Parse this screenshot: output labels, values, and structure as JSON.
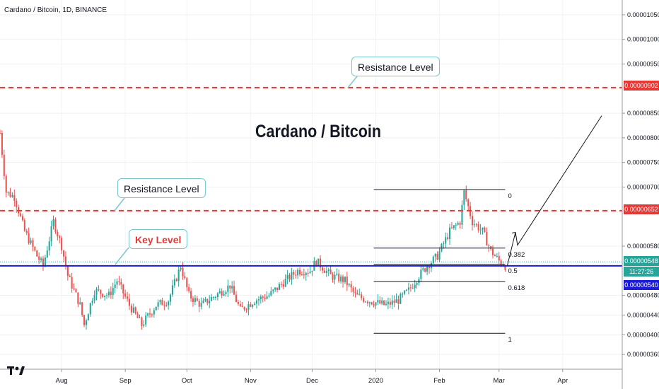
{
  "symbol_line": "Cardano / Bitcoin, 1D, BINANCE",
  "heading": "Cardano / Bitcoin",
  "annotations": {
    "resistance_top": "Resistance Level",
    "resistance_mid": "Resistance Level",
    "key_level": "Key Level"
  },
  "price_tags": {
    "resistance_top": "0.00000902",
    "resistance_mid": "0.00000652",
    "current": "0.00000548",
    "countdown": "11:27:26",
    "key_level": "0.00000540"
  },
  "colors": {
    "resistance": "#e53935",
    "key_level": "#1c1cd6",
    "current": "#26a69a",
    "up_candle": "#26a69a",
    "down_candle": "#ef5350",
    "fib": "#131722",
    "annotation_border": "#7cc6cf"
  },
  "icons": [
    "tradingview-logo-icon"
  ],
  "chart_data": {
    "type": "candlestick",
    "title": "Cardano / Bitcoin",
    "subtitle": "Cardano / Bitcoin, 1D, BINANCE",
    "y_axis_ticks": [
      "0.00001050",
      "0.00001000",
      "0.00000950",
      "0.00000850",
      "0.00000800",
      "0.00000750",
      "0.00000700",
      "0.00000580",
      "0.00000480",
      "0.00000440",
      "0.00000400",
      "0.00000360"
    ],
    "ylim": [
      3.3e-06,
      1.08e-05
    ],
    "x_axis_ticks": [
      "Aug",
      "Sep",
      "Oct",
      "Nov",
      "Dec",
      "2020",
      "Feb",
      "Mar",
      "Apr"
    ],
    "xlim": [
      "2019-07-02",
      "2020-04-30"
    ],
    "horizontal_levels": [
      {
        "label": "Resistance Level",
        "value": 9.02e-06,
        "style": "dashed",
        "color": "#e53935"
      },
      {
        "label": "Resistance Level",
        "value": 6.52e-06,
        "style": "dashed",
        "color": "#e53935"
      },
      {
        "label": "Key Level",
        "value": 5.4e-06,
        "style": "solid",
        "color": "#1c1cd6"
      },
      {
        "label": "",
        "value": 5.48e-06,
        "style": "dotted",
        "color": "#26a69a"
      }
    ],
    "fibonacci": {
      "start_date": "2019-12-31",
      "end_date": "2020-03-04",
      "levels": [
        {
          "label": "0",
          "value": 6.95e-06
        },
        {
          "label": "0.382",
          "value": 5.76e-06
        },
        {
          "label": "0.5",
          "value": 5.43e-06
        },
        {
          "label": "0.618",
          "value": 5.08e-06
        },
        {
          "label": "1",
          "value": 4.03e-06
        }
      ]
    },
    "projection_path": [
      {
        "date": "2020-03-05",
        "value": 5.4e-06
      },
      {
        "date": "2020-03-09",
        "value": 6.08e-06
      },
      {
        "date": "2020-03-10",
        "value": 5.82e-06
      },
      {
        "date": "2020-04-20",
        "value": 8.45e-06
      }
    ],
    "price_path": [
      {
        "date": "2019-07-02",
        "value": 8.1e-06
      },
      {
        "date": "2019-07-05",
        "value": 6.9e-06
      },
      {
        "date": "2019-07-09",
        "value": 6.8e-06
      },
      {
        "date": "2019-07-14",
        "value": 6.1e-06
      },
      {
        "date": "2019-07-20",
        "value": 5.6e-06
      },
      {
        "date": "2019-07-23",
        "value": 5.4e-06
      },
      {
        "date": "2019-07-28",
        "value": 6.3e-06
      },
      {
        "date": "2019-08-01",
        "value": 5.8e-06
      },
      {
        "date": "2019-08-04",
        "value": 5.2e-06
      },
      {
        "date": "2019-08-10",
        "value": 4.6e-06
      },
      {
        "date": "2019-08-12",
        "value": 4.2e-06
      },
      {
        "date": "2019-08-17",
        "value": 4.9e-06
      },
      {
        "date": "2019-08-24",
        "value": 4.8e-06
      },
      {
        "date": "2019-08-28",
        "value": 5.1e-06
      },
      {
        "date": "2019-09-03",
        "value": 4.6e-06
      },
      {
        "date": "2019-09-09",
        "value": 4.2e-06
      },
      {
        "date": "2019-09-16",
        "value": 4.6e-06
      },
      {
        "date": "2019-09-22",
        "value": 4.7e-06
      },
      {
        "date": "2019-09-28",
        "value": 5.4e-06
      },
      {
        "date": "2019-10-02",
        "value": 4.8e-06
      },
      {
        "date": "2019-10-08",
        "value": 4.6e-06
      },
      {
        "date": "2019-10-15",
        "value": 4.8e-06
      },
      {
        "date": "2019-10-22",
        "value": 5e-06
      },
      {
        "date": "2019-10-27",
        "value": 4.5e-06
      },
      {
        "date": "2019-11-03",
        "value": 4.7e-06
      },
      {
        "date": "2019-11-10",
        "value": 4.8e-06
      },
      {
        "date": "2019-11-18",
        "value": 5.1e-06
      },
      {
        "date": "2019-11-24",
        "value": 5.3e-06
      },
      {
        "date": "2019-11-30",
        "value": 5.3e-06
      },
      {
        "date": "2019-12-03",
        "value": 5.5e-06
      },
      {
        "date": "2019-12-10",
        "value": 5.2e-06
      },
      {
        "date": "2019-12-17",
        "value": 5.1e-06
      },
      {
        "date": "2019-12-22",
        "value": 4.8e-06
      },
      {
        "date": "2019-12-28",
        "value": 4.7e-06
      },
      {
        "date": "2020-01-06",
        "value": 4.6e-06
      },
      {
        "date": "2020-01-12",
        "value": 4.7e-06
      },
      {
        "date": "2020-01-17",
        "value": 4.9e-06
      },
      {
        "date": "2020-01-22",
        "value": 5.2e-06
      },
      {
        "date": "2020-01-26",
        "value": 5.4e-06
      },
      {
        "date": "2020-01-31",
        "value": 5.6e-06
      },
      {
        "date": "2020-02-06",
        "value": 6.1e-06
      },
      {
        "date": "2020-02-11",
        "value": 6.3e-06
      },
      {
        "date": "2020-02-13",
        "value": 6.9e-06
      },
      {
        "date": "2020-02-17",
        "value": 6.3e-06
      },
      {
        "date": "2020-02-22",
        "value": 6.1e-06
      },
      {
        "date": "2020-02-26",
        "value": 5.7e-06
      },
      {
        "date": "2020-03-01",
        "value": 5.5e-06
      },
      {
        "date": "2020-03-04",
        "value": 5.4e-06
      }
    ]
  }
}
